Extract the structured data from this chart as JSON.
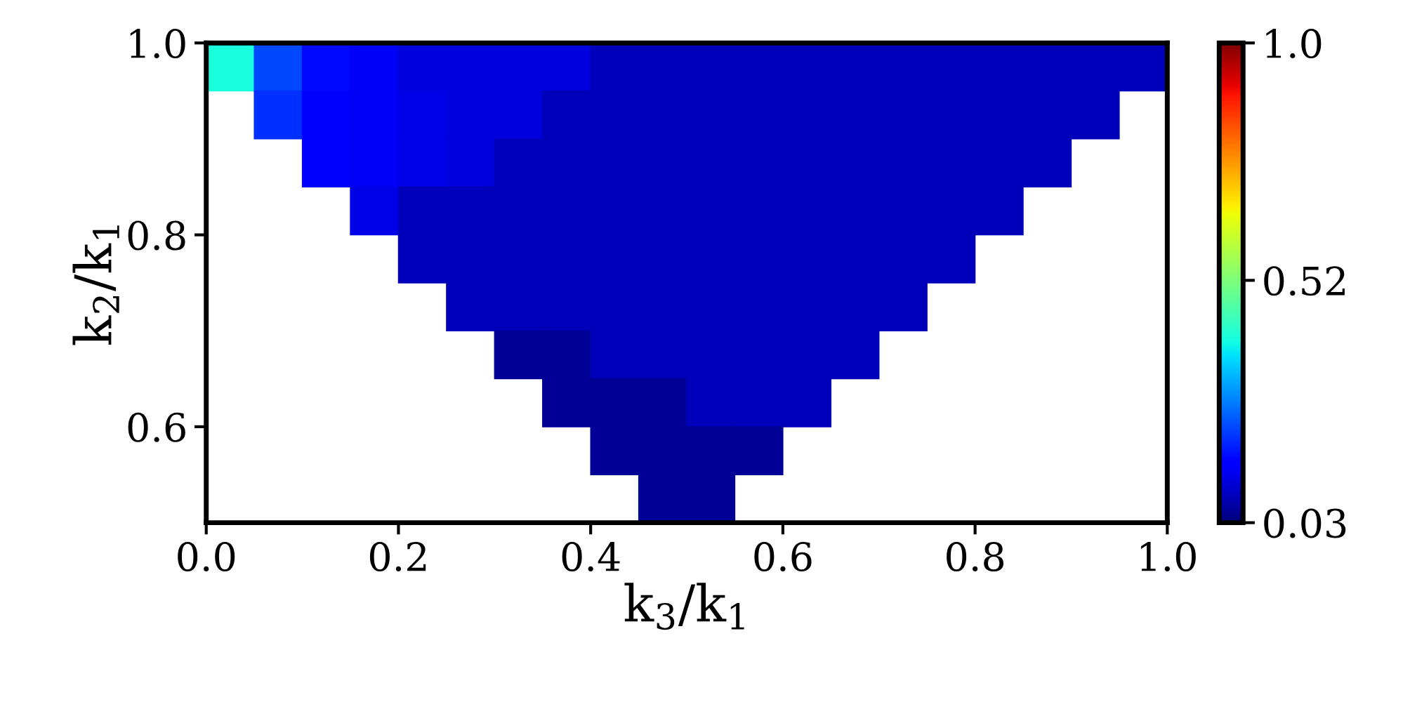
{
  "chart_data": {
    "type": "scatter",
    "xlabel": "k$_{3}$/k$_{1}$",
    "ylabel": "k$_{2}$/k$_{1}$",
    "xlim": [
      0,
      1.0
    ],
    "ylim": [
      0.5,
      1.0
    ],
    "xticks": [
      {
        "value": 0,
        "label": "0.0"
      },
      0.2,
      0.4,
      0.6,
      0.8,
      {
        "value": 1.0,
        "label": "1.0"
      }
    ],
    "yticks": [
      0.6,
      0.8,
      {
        "value": 1.0,
        "label": "1.0"
      }
    ],
    "clim": [
      0.03,
      1.0
    ],
    "cticks": [
      0.03,
      0.52,
      {
        "value": 1.0,
        "label": "1.0"
      }
    ],
    "marker": "square",
    "grid": false,
    "x": [
      0.025,
      0.075,
      0.125,
      0.175,
      0.225,
      0.275,
      0.325,
      0.375,
      0.425,
      0.475,
      0.525,
      0.575,
      0.625,
      0.675,
      0.725,
      0.775,
      0.825,
      0.875,
      0.925,
      0.975,
      0.075,
      0.125,
      0.175,
      0.225,
      0.275,
      0.325,
      0.375,
      0.425,
      0.475,
      0.525,
      0.575,
      0.625,
      0.675,
      0.725,
      0.775,
      0.825,
      0.875,
      0.925,
      0.125,
      0.175,
      0.225,
      0.275,
      0.325,
      0.375,
      0.425,
      0.475,
      0.525,
      0.575,
      0.625,
      0.675,
      0.725,
      0.775,
      0.825,
      0.875,
      0.175,
      0.225,
      0.275,
      0.325,
      0.375,
      0.425,
      0.475,
      0.525,
      0.575,
      0.625,
      0.675,
      0.725,
      0.775,
      0.825,
      0.225,
      0.275,
      0.325,
      0.375,
      0.425,
      0.475,
      0.525,
      0.575,
      0.625,
      0.675,
      0.725,
      0.775,
      0.275,
      0.325,
      0.375,
      0.425,
      0.475,
      0.525,
      0.575,
      0.625,
      0.675,
      0.725,
      0.325,
      0.375,
      0.425,
      0.475,
      0.525,
      0.575,
      0.625,
      0.675,
      0.375,
      0.425,
      0.475,
      0.525,
      0.575,
      0.625,
      0.425,
      0.475,
      0.525,
      0.575,
      0.475,
      0.525
    ],
    "values": [
      0.975,
      0.975,
      0.975,
      0.975,
      0.975,
      0.975,
      0.975,
      0.975,
      0.975,
      0.975,
      0.975,
      0.975,
      0.975,
      0.975,
      0.975,
      0.975,
      0.975,
      0.975,
      0.975,
      0.975,
      0.925,
      0.925,
      0.925,
      0.925,
      0.925,
      0.925,
      0.925,
      0.925,
      0.925,
      0.925,
      0.925,
      0.925,
      0.925,
      0.925,
      0.925,
      0.925,
      0.925,
      0.925,
      0.875,
      0.875,
      0.875,
      0.875,
      0.875,
      0.875,
      0.875,
      0.875,
      0.875,
      0.875,
      0.875,
      0.875,
      0.875,
      0.875,
      0.875,
      0.875,
      0.825,
      0.825,
      0.825,
      0.825,
      0.825,
      0.825,
      0.825,
      0.825,
      0.825,
      0.825,
      0.825,
      0.825,
      0.825,
      0.825,
      0.775,
      0.775,
      0.775,
      0.775,
      0.775,
      0.775,
      0.775,
      0.775,
      0.775,
      0.775,
      0.775,
      0.775,
      0.725,
      0.725,
      0.725,
      0.725,
      0.725,
      0.725,
      0.725,
      0.725,
      0.725,
      0.725,
      0.675,
      0.675,
      0.675,
      0.675,
      0.675,
      0.675,
      0.675,
      0.675,
      0.625,
      0.625,
      0.625,
      0.625,
      0.625,
      0.625,
      0.575,
      0.575,
      0.575,
      0.575,
      0.525,
      0.525
    ],
    "cvalues": [
      0.4,
      0.22,
      0.16,
      0.13,
      0.11,
      0.11,
      0.11,
      0.11,
      0.08,
      0.08,
      0.08,
      0.08,
      0.08,
      0.08,
      0.08,
      0.08,
      0.08,
      0.08,
      0.08,
      0.08,
      0.2,
      0.15,
      0.13,
      0.12,
      0.11,
      0.11,
      0.08,
      0.08,
      0.08,
      0.08,
      0.08,
      0.08,
      0.08,
      0.08,
      0.08,
      0.08,
      0.08,
      0.08,
      0.15,
      0.13,
      0.12,
      0.11,
      0.08,
      0.08,
      0.08,
      0.08,
      0.08,
      0.08,
      0.08,
      0.08,
      0.08,
      0.08,
      0.08,
      0.08,
      0.12,
      0.08,
      0.08,
      0.08,
      0.08,
      0.08,
      0.08,
      0.08,
      0.08,
      0.08,
      0.08,
      0.08,
      0.08,
      0.08,
      0.08,
      0.08,
      0.08,
      0.08,
      0.08,
      0.08,
      0.08,
      0.08,
      0.08,
      0.08,
      0.08,
      0.08,
      0.08,
      0.08,
      0.08,
      0.08,
      0.08,
      0.08,
      0.08,
      0.08,
      0.08,
      0.08,
      0.05,
      0.05,
      0.08,
      0.08,
      0.08,
      0.08,
      0.08,
      0.08,
      0.05,
      0.05,
      0.05,
      0.08,
      0.08,
      0.08,
      0.05,
      0.05,
      0.05,
      0.05,
      0.05,
      0.05
    ]
  }
}
